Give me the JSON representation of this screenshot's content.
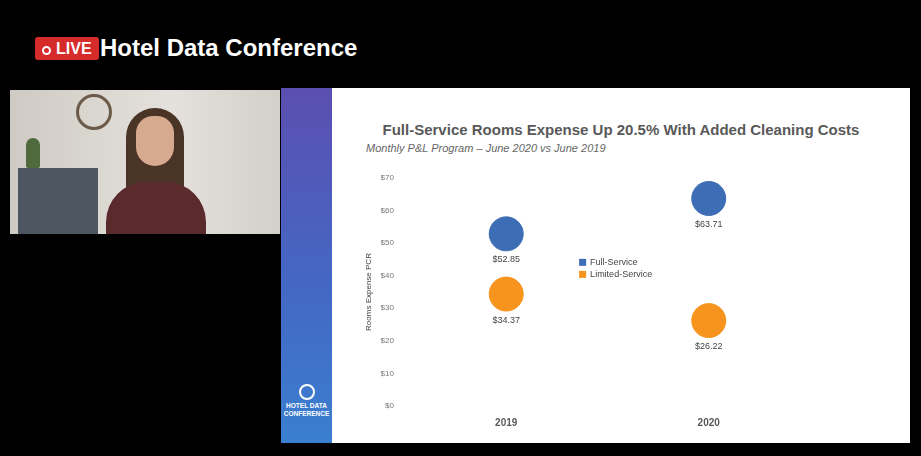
{
  "header": {
    "badge": "LIVE",
    "title": "Hotel Data Conference"
  },
  "slide": {
    "logo_text": "HOTEL DATA CONFERENCE"
  },
  "chart_data": {
    "type": "scatter",
    "title": "Full-Service Rooms Expense Up 20.5% With Added Cleaning Costs",
    "subtitle": "Monthly P&L Program – June 2020 vs June 2019",
    "y_label": "Rooms Expense PCR",
    "categories": [
      "2019",
      "2020"
    ],
    "series": [
      {
        "name": "Full-Service",
        "color": "#3d6db5",
        "marker": "circle",
        "values": [
          52.85,
          63.71
        ],
        "value_labels": [
          "$52.85",
          "$63.71"
        ]
      },
      {
        "name": "Limited-Service",
        "color": "#f7941d",
        "marker": "circle",
        "values": [
          34.37,
          26.22
        ],
        "value_labels": [
          "$34.37",
          "$26.22"
        ]
      }
    ],
    "ylim": [
      0,
      70
    ],
    "yticks": [
      {
        "value": 0,
        "label": "$0"
      },
      {
        "value": 10,
        "label": "$10"
      },
      {
        "value": 20,
        "label": "$20"
      },
      {
        "value": 30,
        "label": "$30"
      },
      {
        "value": 40,
        "label": "$40"
      },
      {
        "value": 50,
        "label": "$50"
      },
      {
        "value": 60,
        "label": "$60"
      },
      {
        "value": 70,
        "label": "$70"
      }
    ],
    "grid": false,
    "legend": "center",
    "data_labels": true
  }
}
